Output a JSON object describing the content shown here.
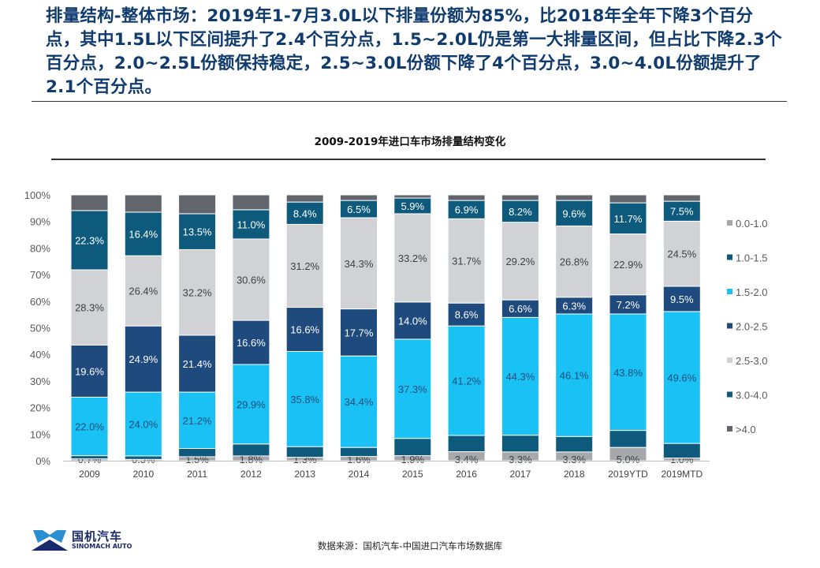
{
  "headline": "排量结构-整体市场：2019年1-7月3.0L以下排量份额为85%，比2018年全年下降3个百分点，其中1.5L以下区间提升了2.4个百分点，1.5~2.0L仍是第一大排量区间，但占比下降2.3个百分点，2.0~2.5L份额保持稳定，2.5~3.0L份额下降了4个百分点，3.0~4.0L份额提升了2.1个百分点。",
  "source": "数据来源：国机汽车-中国进口汽车市场数据库",
  "logo": {
    "cn": "国机汽车",
    "en": "SINOMACH AUTO",
    "icon": "mountain-logo-icon"
  },
  "chart_data": {
    "type": "bar",
    "stacked": true,
    "title": "2009-2019年进口车市场排量结构变化",
    "xlabel": "",
    "ylabel": "",
    "ylim": [
      0,
      100
    ],
    "yticks": [
      "0%",
      "10%",
      "20%",
      "30%",
      "40%",
      "50%",
      "60%",
      "70%",
      "80%",
      "90%",
      "100%"
    ],
    "grid": false,
    "legend_position": "right",
    "categories": [
      "2009",
      "2010",
      "2011",
      "2012",
      "2013",
      "2014",
      "2015",
      "2016",
      "2017",
      "2018",
      "2019YTD",
      "2019MTD"
    ],
    "series": [
      {
        "name": "0.0-1.0",
        "color": "#a6a8ab",
        "label_color": "#404040",
        "labeled": true,
        "values": [
          0.7,
          0.5,
          1.5,
          1.8,
          1.3,
          1.6,
          1.9,
          3.4,
          3.3,
          3.3,
          5.0,
          1.0
        ]
      },
      {
        "name": "1.0-1.5",
        "color": "#0e5a7c",
        "label_color": "#ffffff",
        "labeled": false,
        "values": [
          1.2,
          1.3,
          3.1,
          4.5,
          4.0,
          3.4,
          6.5,
          6.1,
          6.3,
          5.8,
          6.4,
          5.5
        ]
      },
      {
        "name": "1.5-2.0",
        "color": "#19c1f5",
        "label_color": "#1f4e79",
        "labeled": true,
        "values": [
          22.0,
          24.0,
          21.2,
          29.9,
          35.8,
          34.4,
          37.3,
          41.2,
          44.3,
          46.1,
          43.8,
          49.6
        ]
      },
      {
        "name": "2.0-2.5",
        "color": "#1f4a7e",
        "label_color": "#ffffff",
        "labeled": true,
        "values": [
          19.6,
          24.9,
          21.4,
          16.6,
          16.6,
          17.7,
          14.0,
          8.6,
          6.6,
          6.3,
          7.2,
          9.5
        ]
      },
      {
        "name": "2.5-3.0",
        "color": "#d0d2d5",
        "label_color": "#404040",
        "labeled": true,
        "values": [
          28.3,
          26.4,
          32.2,
          30.6,
          31.2,
          34.3,
          33.2,
          31.7,
          29.2,
          26.8,
          22.9,
          24.5
        ]
      },
      {
        "name": "3.0-4.0",
        "color": "#0e5a7c",
        "label_color": "#ffffff",
        "labeled": true,
        "values": [
          22.3,
          16.4,
          13.5,
          11.0,
          8.4,
          6.5,
          5.9,
          6.9,
          8.2,
          9.6,
          11.7,
          7.5
        ]
      },
      {
        "name": ">4.0",
        "color": "#62656b",
        "label_color": "#ffffff",
        "labeled": false,
        "values": [
          5.9,
          6.5,
          7.1,
          5.6,
          2.7,
          2.1,
          1.2,
          2.1,
          2.1,
          2.1,
          3.0,
          2.4
        ]
      }
    ]
  }
}
